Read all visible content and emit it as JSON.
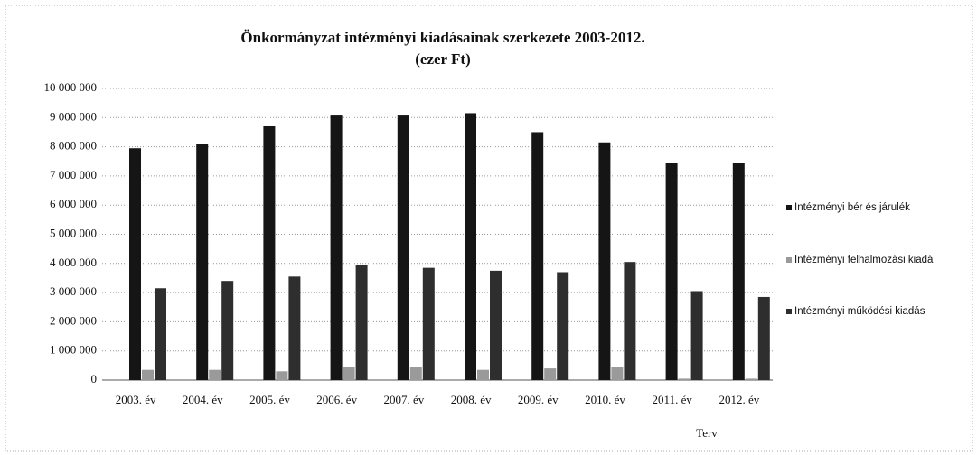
{
  "chart_data": {
    "type": "bar",
    "title": "Önkormányzat intézményi kiadásainak szerkezete 2003-2012.",
    "subtitle": "(ezer Ft)",
    "annotation": "Terv",
    "categories": [
      "2003. év",
      "2004. év",
      "2005. év",
      "2006. év",
      "2007. év",
      "2008. év",
      "2009. év",
      "2010. év",
      "2011. év",
      "2012. év"
    ],
    "series": [
      {
        "name": "Intézményi bér és járulék",
        "color": "#151515",
        "values": [
          7950000,
          8100000,
          8700000,
          9100000,
          9100000,
          9150000,
          8500000,
          8150000,
          7450000,
          7450000
        ]
      },
      {
        "name": "Intézményi felhalmozási kiadá",
        "color": "#9a9a9a",
        "values": [
          350000,
          350000,
          300000,
          450000,
          450000,
          350000,
          400000,
          450000,
          50000,
          50000
        ]
      },
      {
        "name": "Intézményi működési kiadás",
        "color": "#2e2e2e",
        "values": [
          3150000,
          3400000,
          3550000,
          3950000,
          3850000,
          3750000,
          3700000,
          4050000,
          3050000,
          2850000
        ]
      }
    ],
    "ylim": [
      0,
      10000000
    ],
    "yticks": [
      0,
      {
        "value": 1000000,
        "label": "1 000 000"
      },
      {
        "value": 2000000,
        "label": "2 000 000"
      },
      {
        "value": 3000000,
        "label": "3 000 000"
      },
      {
        "value": 4000000,
        "label": "4 000 000"
      },
      {
        "value": 5000000,
        "label": "5 000 000"
      },
      {
        "value": 6000000,
        "label": "6 000 000"
      },
      {
        "value": 7000000,
        "label": "7 000 000"
      },
      {
        "value": 8000000,
        "label": "8 000 000"
      },
      {
        "value": 9000000,
        "label": "9 000 000"
      },
      {
        "value": 10000000,
        "label": "10 000 000"
      }
    ],
    "grid": true,
    "legend": "right"
  }
}
